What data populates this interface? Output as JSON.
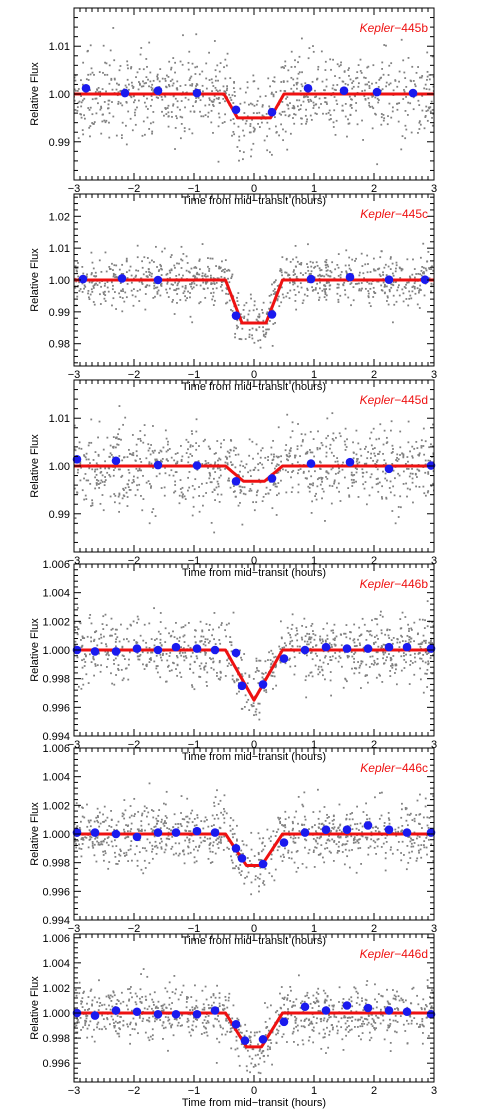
{
  "colors": {
    "model": "#ee1111",
    "binned": "#1a1aee",
    "raw": "#808080",
    "axis": "#000000",
    "label": "#ee1111"
  },
  "chart_data": [
    {
      "type": "scatter",
      "planet_name": "Kepler",
      "planet_suffix": "−445b",
      "xlabel": "Time from mid−transit (hours)",
      "ylabel": "Relative Flux",
      "xlim": [
        -3,
        3
      ],
      "ylim": [
        0.982,
        1.018
      ],
      "xticks": [
        -3,
        -2,
        -1,
        0,
        1,
        2,
        3
      ],
      "xtick_labels": [
        "−3",
        "−2",
        "−1",
        "0",
        "1",
        "2",
        "3"
      ],
      "yticks": [
        0.99,
        1.0,
        1.01
      ],
      "ytick_labels": [
        "0.99",
        "1.00",
        "1.01"
      ],
      "model": {
        "depth": 0.005,
        "t_full": 0.55,
        "t_total": 1.0,
        "baseline": 1.0
      },
      "raw_scatter": 0.0042,
      "binned": {
        "x": [
          -2.8,
          -2.15,
          -1.6,
          -0.95,
          -0.3,
          0.3,
          0.9,
          1.5,
          2.05,
          2.65
        ],
        "y": [
          1.0012,
          1.0002,
          1.0007,
          1.0002,
          0.9967,
          0.9962,
          1.0012,
          1.0007,
          1.0004,
          1.0002
        ]
      }
    },
    {
      "type": "scatter",
      "planet_name": "Kepler",
      "planet_suffix": "−445c",
      "xlabel": "Time from mid−transit (hours)",
      "ylabel": "Relative Flux",
      "xlim": [
        -3,
        3
      ],
      "ylim": [
        0.973,
        1.027
      ],
      "xticks": [
        -3,
        -2,
        -1,
        0,
        1,
        2,
        3
      ],
      "xtick_labels": [
        "−3",
        "−2",
        "−1",
        "0",
        "1",
        "2",
        "3"
      ],
      "yticks": [
        0.98,
        0.99,
        1.0,
        1.01,
        1.02
      ],
      "ytick_labels": [
        "0.98",
        "0.99",
        "1.00",
        "1.01",
        "1.02"
      ],
      "model": {
        "depth": 0.0135,
        "t_full": 0.4,
        "t_total": 0.95,
        "baseline": 1.0
      },
      "raw_scatter": 0.0042,
      "binned": {
        "x": [
          -2.85,
          -2.2,
          -1.6,
          -0.3,
          0.3,
          0.95,
          1.6,
          2.25,
          2.85
        ],
        "y": [
          1.0003,
          1.0005,
          1.0,
          0.9888,
          0.9892,
          1.0003,
          1.0009,
          1.0001,
          1.0001
        ]
      }
    },
    {
      "type": "scatter",
      "planet_name": "Kepler",
      "planet_suffix": "−445d",
      "xlabel": "Time from mid−transit (hours)",
      "ylabel": "Relative Flux",
      "xlim": [
        -3,
        3
      ],
      "ylim": [
        0.982,
        1.018
      ],
      "xticks": [
        -3,
        -2,
        -1,
        0,
        1,
        2,
        3
      ],
      "xtick_labels": [
        "−3",
        "−2",
        "−1",
        "0",
        "1",
        "2",
        "3"
      ],
      "yticks": [
        0.99,
        1.0,
        1.01
      ],
      "ytick_labels": [
        "0.99",
        "1.00",
        "1.01"
      ],
      "model": {
        "depth": 0.0032,
        "t_full": 0.35,
        "t_total": 0.95,
        "baseline": 1.0
      },
      "raw_scatter": 0.0042,
      "binned": {
        "x": [
          -2.95,
          -2.3,
          -1.6,
          -0.95,
          -0.3,
          0.3,
          0.95,
          1.6,
          2.25,
          2.95
        ],
        "y": [
          1.0014,
          1.0011,
          1.0002,
          1.0001,
          0.9968,
          0.9974,
          1.0005,
          1.0008,
          0.9994,
          1.0001
        ]
      }
    },
    {
      "type": "scatter",
      "planet_name": "Kepler",
      "planet_suffix": "−446b",
      "xlabel": "Time from mid−transit (hours)",
      "ylabel": "Relative Flux",
      "xlim": [
        -3,
        3
      ],
      "ylim": [
        0.994,
        1.006
      ],
      "xticks": [
        -3,
        -2,
        -1,
        0,
        1,
        2,
        3
      ],
      "xtick_labels": [
        "−3",
        "−2",
        "−1",
        "0",
        "1",
        "2",
        "3"
      ],
      "yticks": [
        0.994,
        0.996,
        0.998,
        1.0,
        1.002,
        1.004,
        1.006
      ],
      "ytick_labels": [
        "0.994",
        "0.996",
        "0.998",
        "1.000",
        "1.002",
        "1.004",
        "1.006"
      ],
      "model": {
        "depth": 0.0035,
        "t_full": 0.0,
        "t_total": 0.95,
        "baseline": 1.0
      },
      "raw_scatter": 0.0011,
      "binned": {
        "x": [
          -2.95,
          -2.65,
          -2.3,
          -1.95,
          -1.6,
          -1.3,
          -0.95,
          -0.65,
          -0.3,
          -0.2,
          0.15,
          0.5,
          0.85,
          1.2,
          1.55,
          1.9,
          2.25,
          2.55,
          2.95
        ],
        "y": [
          1.0,
          0.9999,
          0.9999,
          1.0001,
          1.0,
          1.0002,
          1.0001,
          1.0,
          0.9998,
          0.9975,
          0.9976,
          0.9994,
          1.0,
          1.0002,
          1.0001,
          1.0001,
          1.0002,
          1.0002,
          1.0001
        ]
      }
    },
    {
      "type": "scatter",
      "planet_name": "Kepler",
      "planet_suffix": "−446c",
      "xlabel": "Time from mid−transit (hours)",
      "ylabel": "Relative Flux",
      "xlim": [
        -3,
        3
      ],
      "ylim": [
        0.994,
        1.006
      ],
      "xticks": [
        -3,
        -2,
        -1,
        0,
        1,
        2,
        3
      ],
      "xtick_labels": [
        "−3",
        "−2",
        "−1",
        "0",
        "1",
        "2",
        "3"
      ],
      "yticks": [
        0.994,
        0.996,
        0.998,
        1.0,
        1.002,
        1.004,
        1.006
      ],
      "ytick_labels": [
        "0.994",
        "0.996",
        "0.998",
        "1.000",
        "1.002",
        "1.004",
        "1.006"
      ],
      "model": {
        "depth": 0.0022,
        "t_full": 0.25,
        "t_total": 0.95,
        "baseline": 1.0
      },
      "raw_scatter": 0.0011,
      "binned": {
        "x": [
          -2.95,
          -2.65,
          -2.3,
          -1.95,
          -1.6,
          -1.3,
          -0.95,
          -0.65,
          -0.3,
          -0.2,
          0.15,
          0.5,
          0.85,
          1.2,
          1.55,
          1.9,
          2.25,
          2.55,
          2.95
        ],
        "y": [
          1.0001,
          1.0001,
          1.0,
          0.9998,
          1.0001,
          1.0001,
          1.0002,
          1.0001,
          0.999,
          0.9983,
          0.9979,
          0.9994,
          1.0001,
          1.0003,
          1.0003,
          1.0006,
          1.0003,
          1.0001,
          1.0001
        ]
      }
    },
    {
      "type": "scatter",
      "planet_name": "Kepler",
      "planet_suffix": "−446d",
      "xlabel": "Time from mid−transit (hours)",
      "ylabel": "Relative Flux",
      "xlim": [
        -3,
        3
      ],
      "ylim": [
        0.9945,
        1.0063
      ],
      "xticks": [
        -3,
        -2,
        -1,
        0,
        1,
        2,
        3
      ],
      "xtick_labels": [
        "−3",
        "−2",
        "−1",
        "0",
        "1",
        "2",
        "3"
      ],
      "yticks": [
        0.996,
        0.998,
        1.0,
        1.002,
        1.004,
        1.006
      ],
      "ytick_labels": [
        "0.996",
        "0.998",
        "1.000",
        "1.002",
        "1.004",
        "1.006"
      ],
      "model": {
        "depth": 0.0027,
        "t_full": 0.25,
        "t_total": 0.95,
        "baseline": 1.0
      },
      "raw_scatter": 0.0011,
      "binned": {
        "x": [
          -2.95,
          -2.65,
          -2.3,
          -1.95,
          -1.6,
          -1.3,
          -0.95,
          -0.65,
          -0.3,
          -0.15,
          0.15,
          0.5,
          0.85,
          1.2,
          1.55,
          1.9,
          2.25,
          2.55,
          2.95
        ],
        "y": [
          1.0,
          0.9998,
          1.0002,
          1.0001,
          0.9999,
          0.9999,
          0.9999,
          1.0002,
          0.9991,
          0.9978,
          0.9979,
          0.9993,
          1.0005,
          1.0002,
          1.0006,
          1.0004,
          1.0002,
          1.0001,
          0.9999
        ]
      }
    }
  ]
}
